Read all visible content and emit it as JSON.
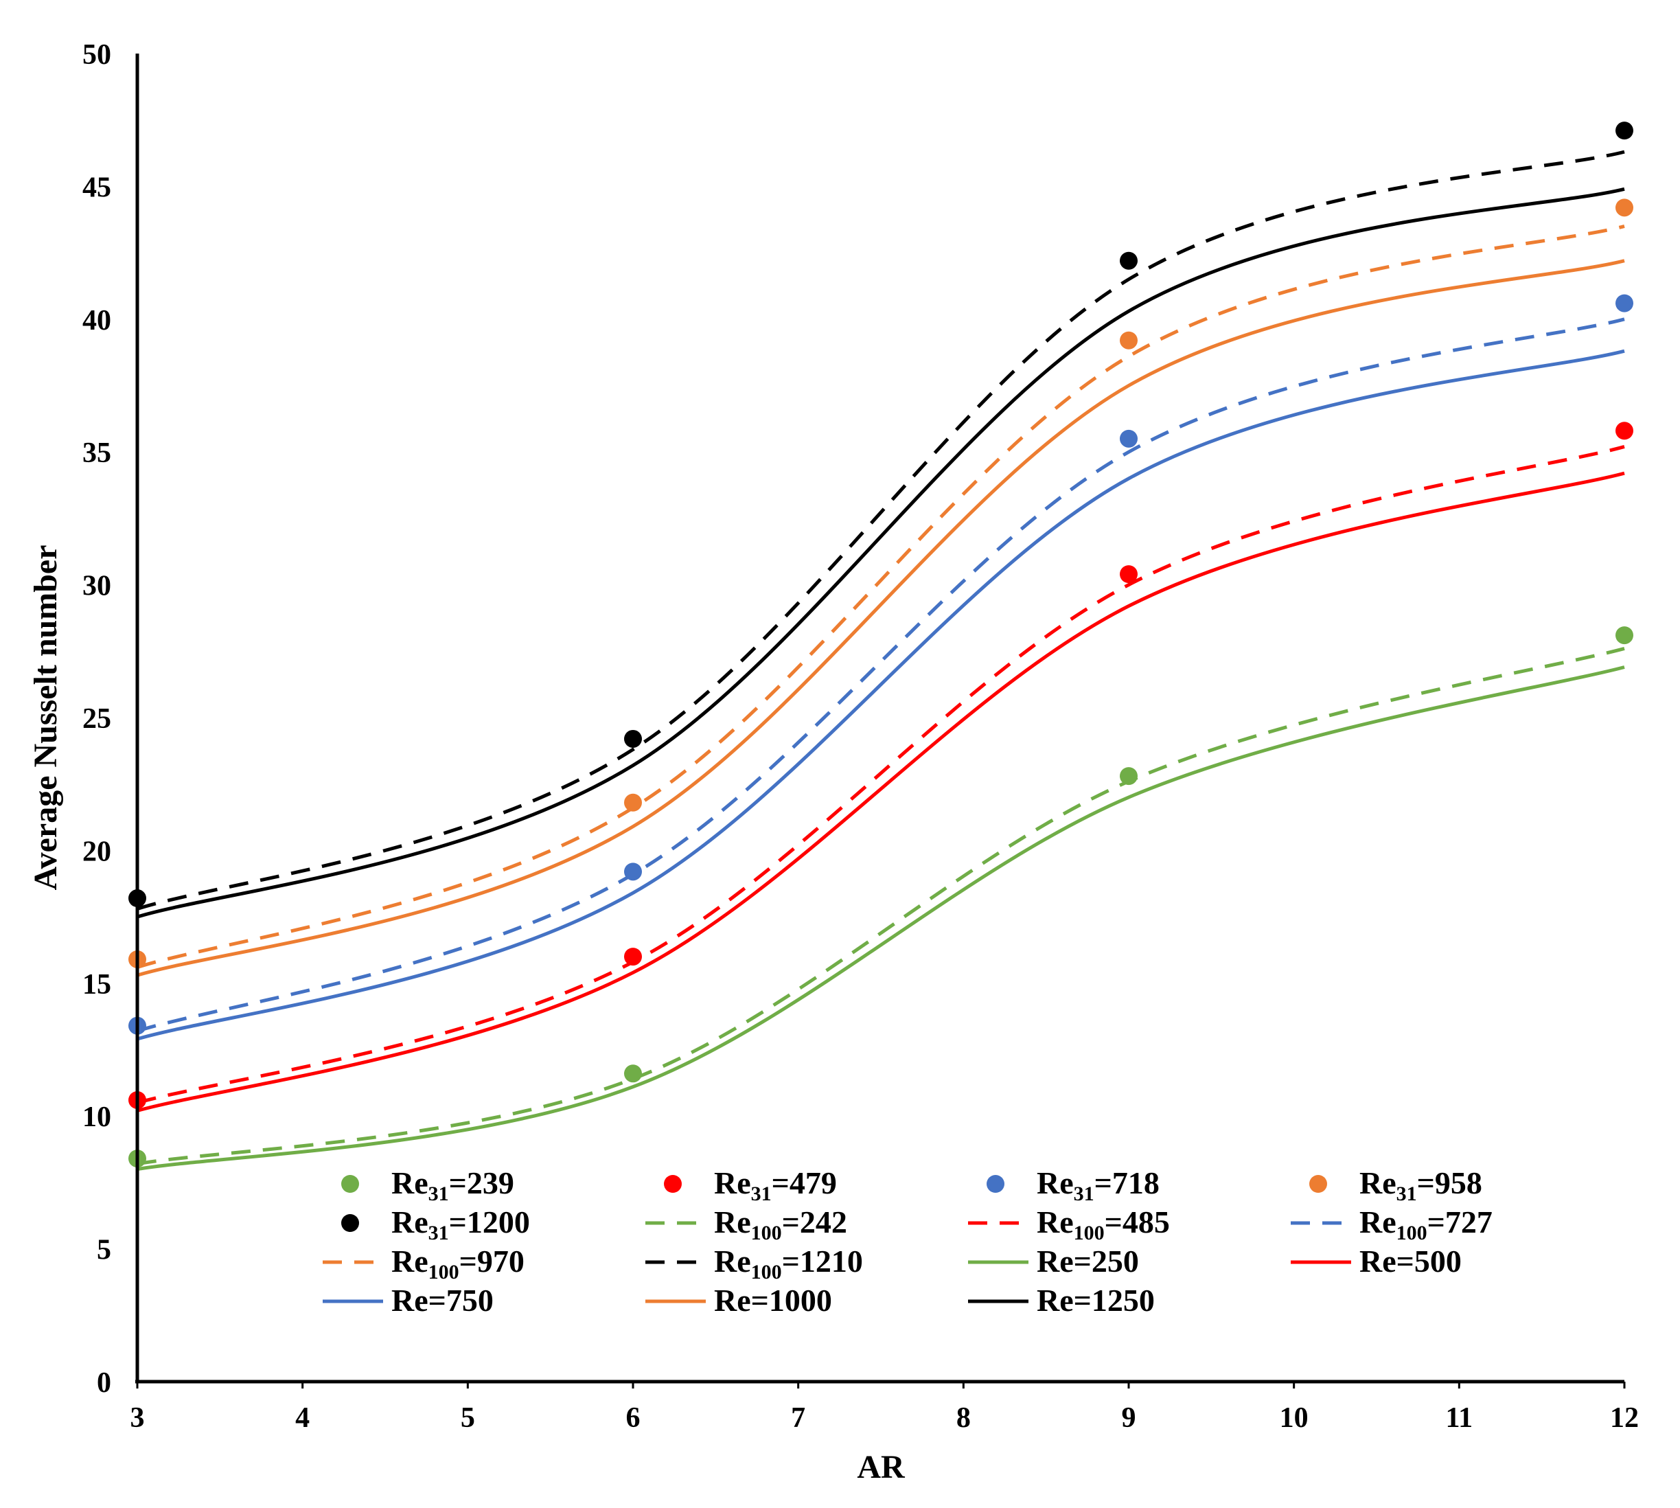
{
  "chart_data": {
    "type": "line",
    "title": "",
    "xlabel": "AR",
    "ylabel": "Average Nusselt number",
    "xlim": [
      3,
      12
    ],
    "ylim": [
      0,
      50
    ],
    "xticks": [
      "3",
      "4",
      "5",
      "6",
      "7",
      "8",
      "9",
      "10",
      "11",
      "12"
    ],
    "yticks": [
      "0",
      "5",
      "10",
      "15",
      "20",
      "25",
      "30",
      "35",
      "40",
      "45",
      "50"
    ],
    "x": [
      3,
      6,
      9,
      12
    ],
    "series": [
      {
        "id": "re31-239",
        "kind": "points",
        "color": "#70ad47",
        "label_base": "Re",
        "label_sub": "31",
        "label_tail": "=239",
        "values": [
          8.4,
          11.6,
          22.8,
          28.1
        ]
      },
      {
        "id": "re31-479",
        "kind": "points",
        "color": "#ff0000",
        "label_base": "Re",
        "label_sub": "31",
        "label_tail": "=479",
        "values": [
          10.6,
          16.0,
          30.4,
          35.8
        ]
      },
      {
        "id": "re31-718",
        "kind": "points",
        "color": "#4472c4",
        "label_base": "Re",
        "label_sub": "31",
        "label_tail": "=718",
        "values": [
          13.4,
          19.2,
          35.5,
          40.6
        ]
      },
      {
        "id": "re31-958",
        "kind": "points",
        "color": "#ed7d31",
        "label_base": "Re",
        "label_sub": "31",
        "label_tail": "=958",
        "values": [
          15.9,
          21.8,
          39.2,
          44.2
        ]
      },
      {
        "id": "re31-1200",
        "kind": "points",
        "color": "#000000",
        "label_base": "Re",
        "label_sub": "31",
        "label_tail": "=1200",
        "values": [
          18.2,
          24.2,
          42.2,
          47.1
        ]
      },
      {
        "id": "re100-242",
        "kind": "dashed",
        "color": "#70ad47",
        "label_base": "Re",
        "label_sub": "100",
        "label_tail": "=242",
        "values": [
          8.2,
          11.4,
          22.6,
          27.6
        ]
      },
      {
        "id": "re100-485",
        "kind": "dashed",
        "color": "#ff0000",
        "label_base": "Re",
        "label_sub": "100",
        "label_tail": "=485",
        "values": [
          10.5,
          15.8,
          30.0,
          35.2
        ]
      },
      {
        "id": "re100-727",
        "kind": "dashed",
        "color": "#4472c4",
        "label_base": "Re",
        "label_sub": "100",
        "label_tail": "=727",
        "values": [
          13.2,
          19.1,
          35.0,
          40.0
        ]
      },
      {
        "id": "re100-970",
        "kind": "dashed",
        "color": "#ed7d31",
        "label_base": "Re",
        "label_sub": "100",
        "label_tail": "=970",
        "values": [
          15.6,
          21.6,
          38.6,
          43.5
        ]
      },
      {
        "id": "re100-1210",
        "kind": "dashed",
        "color": "#000000",
        "label_base": "Re",
        "label_sub": "100",
        "label_tail": "=1210",
        "values": [
          17.8,
          23.8,
          41.5,
          46.3
        ]
      },
      {
        "id": "re-250",
        "kind": "solid",
        "color": "#70ad47",
        "label_base": "Re=250",
        "label_sub": "",
        "label_tail": "",
        "values": [
          8.0,
          11.1,
          22.0,
          26.9
        ]
      },
      {
        "id": "re-500",
        "kind": "solid",
        "color": "#ff0000",
        "label_base": "Re=500",
        "label_sub": "",
        "label_tail": "",
        "values": [
          10.2,
          15.4,
          29.2,
          34.2
        ]
      },
      {
        "id": "re-750",
        "kind": "solid",
        "color": "#4472c4",
        "label_base": "Re=750",
        "label_sub": "",
        "label_tail": "",
        "values": [
          12.9,
          18.4,
          34.0,
          38.8
        ]
      },
      {
        "id": "re-1000",
        "kind": "solid",
        "color": "#ed7d31",
        "label_base": "Re=1000",
        "label_sub": "",
        "label_tail": "",
        "values": [
          15.3,
          20.9,
          37.5,
          42.2
        ]
      },
      {
        "id": "re-1250",
        "kind": "solid",
        "color": "#000000",
        "label_base": "Re=1250",
        "label_sub": "",
        "label_tail": "",
        "values": [
          17.5,
          23.2,
          40.3,
          44.9
        ]
      }
    ],
    "legend_position": "bottom-center inside plot"
  }
}
